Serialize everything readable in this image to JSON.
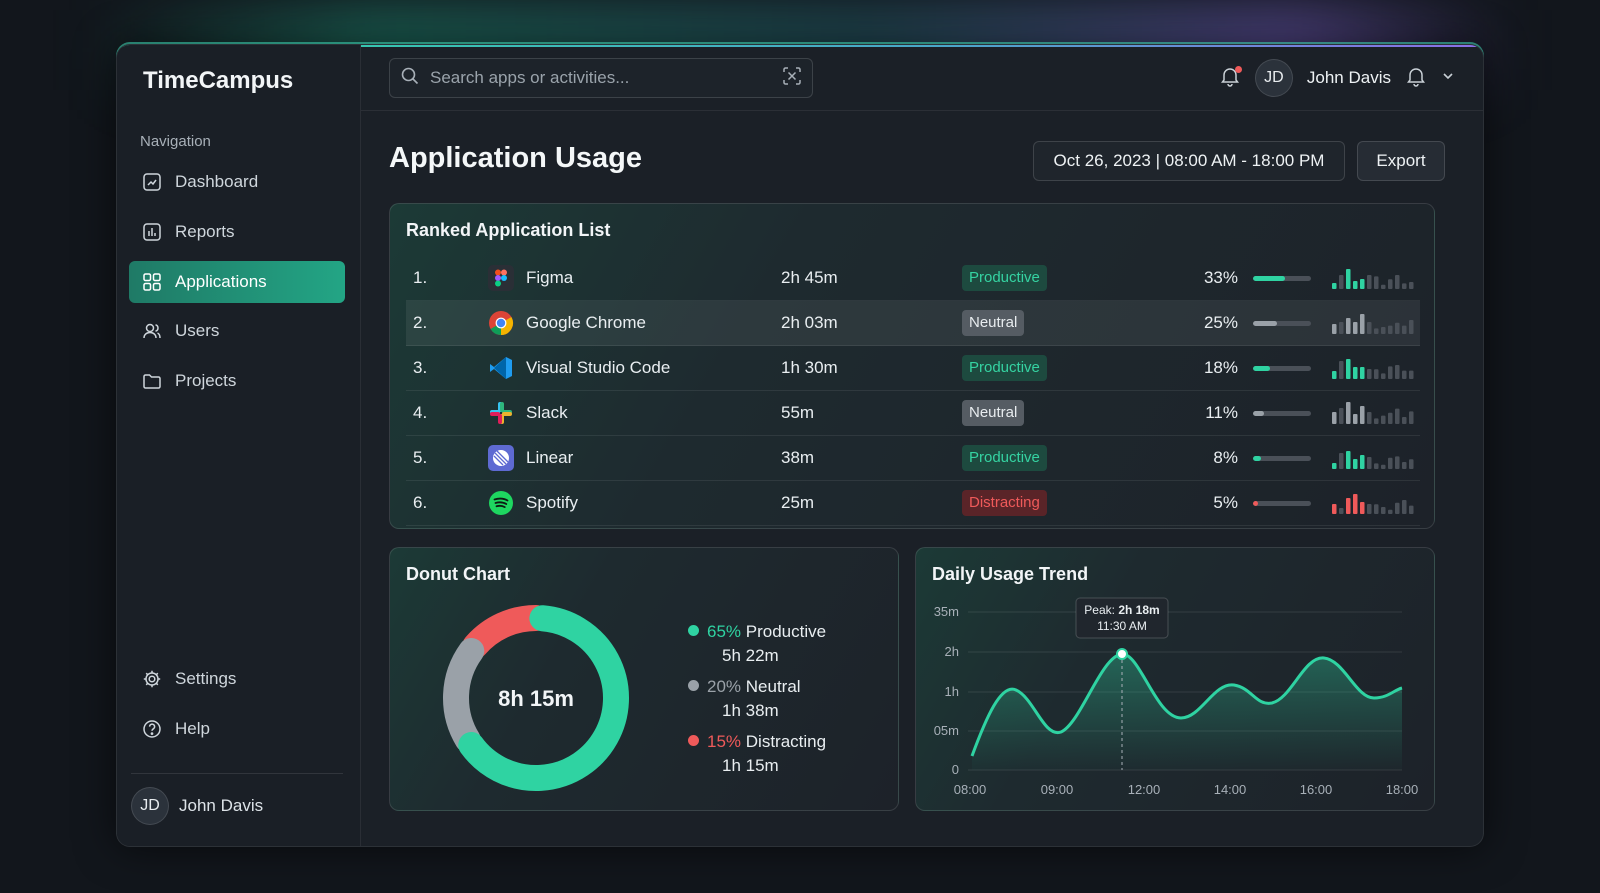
{
  "app": {
    "brand": "TimeCampus"
  },
  "sidebar": {
    "heading": "Navigation",
    "items": [
      {
        "label": "Dashboard",
        "icon": "dashboard-icon"
      },
      {
        "label": "Reports",
        "icon": "reports-icon"
      },
      {
        "label": "Applications",
        "icon": "grid-icon",
        "active": true
      },
      {
        "label": "Users",
        "icon": "users-icon"
      },
      {
        "label": "Projects",
        "icon": "folder-icon"
      }
    ],
    "bottom_items": [
      {
        "label": "Settings",
        "icon": "gear-icon"
      },
      {
        "label": "Help",
        "icon": "help-icon"
      }
    ],
    "user": {
      "initials": "JD",
      "name": "John Davis"
    }
  },
  "topbar": {
    "search_placeholder": "Search apps or activities...",
    "user": {
      "initials": "JD",
      "name": "John Davis"
    }
  },
  "page": {
    "title": "Application Usage",
    "date_range": "Oct 26, 2023 | 08:00 AM - 18:00 PM",
    "export_label": "Export"
  },
  "ranked": {
    "title": "Ranked Application List",
    "rows": [
      {
        "rank": "1.",
        "name": "Figma",
        "time": "2h 45m",
        "category": "Productive",
        "pct": "33%",
        "share": 0.33,
        "icon": "figma-icon"
      },
      {
        "rank": "2.",
        "name": "Google Chrome",
        "time": "2h 03m",
        "category": "Neutral",
        "pct": "25%",
        "share": 0.25,
        "icon": "chrome-icon"
      },
      {
        "rank": "3.",
        "name": "Visual Studio Code",
        "time": "1h 30m",
        "category": "Productive",
        "pct": "18%",
        "share": 0.18,
        "icon": "vscode-icon"
      },
      {
        "rank": "4.",
        "name": "Slack",
        "time": "55m",
        "category": "Neutral",
        "pct": "11%",
        "share": 0.11,
        "icon": "slack-icon"
      },
      {
        "rank": "5.",
        "name": "Linear",
        "time": "38m",
        "category": "Productive",
        "pct": "8%",
        "share": 0.08,
        "icon": "linear-icon"
      },
      {
        "rank": "6.",
        "name": "Spotify",
        "time": "25m",
        "category": "Distracting",
        "pct": "5%",
        "share": 0.05,
        "icon": "spotify-icon"
      }
    ]
  },
  "colors": {
    "productive": "#2fd3a2",
    "neutral": "#9aa1a8",
    "distracting": "#ef5a5a",
    "accent": "#23a585"
  },
  "donut": {
    "title": "Donut Chart",
    "center_label": "8h 15m",
    "legend": [
      {
        "pct": "65%",
        "label": "Productive",
        "time": "5h 22m",
        "key": "productive"
      },
      {
        "pct": "20%",
        "label": "Neutral",
        "time": "1h 38m",
        "key": "neutral"
      },
      {
        "pct": "15%",
        "label": "Distracting",
        "time": "1h 15m",
        "key": "distracting"
      }
    ]
  },
  "chart_data": {
    "type": "donut",
    "title": "Donut Chart",
    "series": [
      {
        "name": "Productive",
        "value": 65,
        "color": "#2fd3a2"
      },
      {
        "name": "Neutral",
        "value": 20,
        "color": "#9aa1a8"
      },
      {
        "name": "Distracting",
        "value": 15,
        "color": "#ef5a5a"
      }
    ],
    "total_label": "8h 15m"
  },
  "trend": {
    "title": "Daily Usage Trend",
    "y_ticks": [
      "0",
      "05m",
      "1h",
      "2h",
      "35m"
    ],
    "x_ticks": [
      "08:00",
      "09:00",
      "12:00",
      "14:00",
      "16:00",
      "18:00"
    ],
    "tooltip_prefix": "Peak: ",
    "tooltip_value": "2h 18m",
    "tooltip_time": "11:30 AM"
  }
}
